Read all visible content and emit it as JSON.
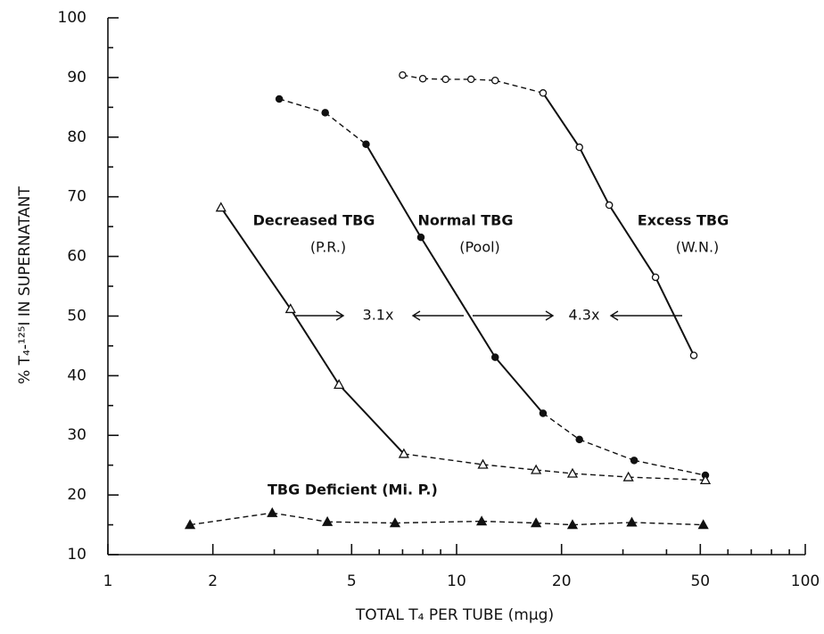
{
  "chart_data": {
    "type": "scatter",
    "x_label": "TOTAL T₄ PER TUBE (mμg)",
    "y_label": "% T₄-¹²⁵I IN SUPERNATANT",
    "xlog": true,
    "xlim": [
      1,
      100
    ],
    "xticks": [
      1,
      2,
      5,
      10,
      20,
      50,
      100
    ],
    "xminorticks": [
      3,
      4,
      6,
      7,
      8,
      9,
      30,
      40,
      60,
      70,
      80,
      90
    ],
    "ylim": [
      10,
      100
    ],
    "yticks": [
      10,
      20,
      30,
      40,
      50,
      60,
      70,
      80,
      90,
      100
    ],
    "yminorticks": [
      15,
      25,
      35,
      45,
      55,
      65,
      75,
      85,
      95
    ],
    "series": [
      {
        "name": "Excess TBG",
        "note": "(W.N.)",
        "marker": "open-circle",
        "color": "#111",
        "x": [
          7.0,
          8.0,
          9.3,
          11.0,
          12.9,
          17.7,
          22.5,
          27.4,
          37.2,
          47.9
        ],
        "values": [
          90.4,
          89.8,
          89.7,
          89.7,
          89.5,
          87.4,
          78.3,
          68.6,
          56.5,
          43.4
        ]
      },
      {
        "name": "Normal TBG",
        "note": "(Pool)",
        "marker": "filled-circle",
        "color": "#111",
        "x": [
          3.1,
          4.2,
          5.5,
          7.9,
          12.9,
          17.7,
          22.5,
          32.3,
          51.7
        ],
        "values": [
          86.4,
          84.1,
          78.8,
          63.2,
          43.1,
          33.7,
          29.3,
          25.8,
          23.3
        ]
      },
      {
        "name": "Decreased TBG",
        "note": "(P.R.)",
        "marker": "open-triangle",
        "color": "#111",
        "x": [
          2.11,
          3.34,
          4.6,
          7.06,
          11.9,
          16.9,
          21.5,
          31.1,
          51.7
        ],
        "values": [
          68.2,
          51.2,
          38.5,
          26.9,
          25.1,
          24.2,
          23.6,
          23.0,
          22.5
        ]
      },
      {
        "name": "TBG Deficient (Mi. P.)",
        "marker": "filled-triangle",
        "color": "#111",
        "x": [
          1.72,
          2.96,
          4.26,
          6.66,
          11.8,
          16.9,
          21.5,
          31.8,
          51.0
        ],
        "values": [
          15.0,
          17.0,
          15.5,
          15.3,
          15.6,
          15.3,
          15.0,
          15.4,
          15.0
        ]
      }
    ],
    "annotations": [
      "3.1x",
      "4.3x"
    ]
  }
}
